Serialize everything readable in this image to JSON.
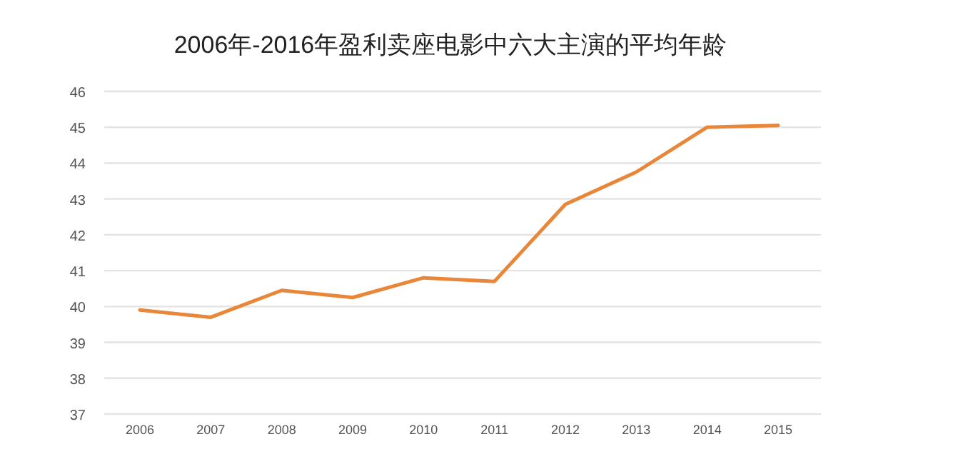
{
  "chart_data": {
    "type": "line",
    "title": "2006年-2016年盈利卖座电影中六大主演的平均年龄",
    "categories": [
      "2006",
      "2007",
      "2008",
      "2009",
      "2010",
      "2011",
      "2012",
      "2013",
      "2014",
      "2015"
    ],
    "series": [
      {
        "color": "#e8873a",
        "values": [
          39.9,
          39.7,
          40.45,
          40.25,
          40.8,
          40.7,
          42.85,
          43.75,
          45.0,
          45.05
        ]
      }
    ],
    "ylim": [
      37,
      46
    ],
    "yticks": [
      37,
      38,
      39,
      40,
      41,
      42,
      43,
      44,
      45,
      46
    ],
    "grid": "y",
    "marker": "none",
    "line_style": "solid"
  }
}
